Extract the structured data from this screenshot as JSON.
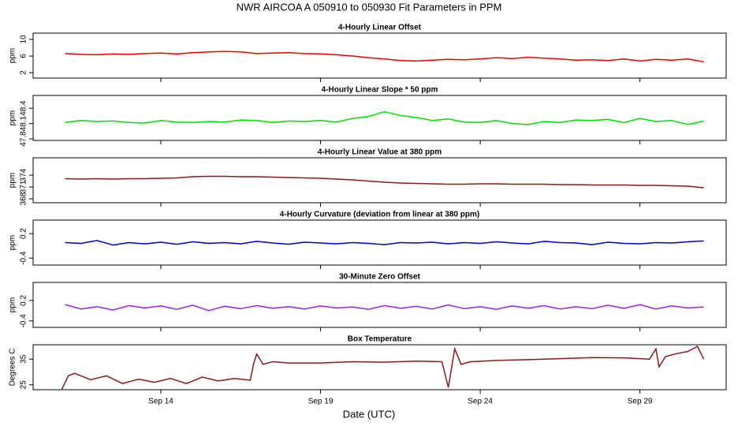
{
  "title": "NWR   AIRCOA A   050910 to 050930   Fit Parameters in PPM",
  "xlabel": "Date (UTC)",
  "xlim": [
    10,
    31.7
  ],
  "xticks": [
    {
      "value": 14,
      "label": "Sep 14"
    },
    {
      "value": 19,
      "label": "Sep 19"
    },
    {
      "value": 24,
      "label": "Sep 24"
    },
    {
      "value": 29,
      "label": "Sep 29"
    }
  ],
  "chart_data": [
    {
      "type": "line",
      "title": "4-Hourly Linear Offset",
      "ylabel": "ppm",
      "color": "#ee0000",
      "ylim": [
        0.7,
        11.5
      ],
      "yticks": [
        2,
        6,
        10
      ],
      "x": [
        11,
        11.5,
        12,
        12.5,
        13,
        13.5,
        14,
        14.5,
        15,
        15.5,
        16,
        16.5,
        17,
        17.5,
        18,
        18.5,
        19,
        19.5,
        20,
        20.5,
        21,
        21.5,
        22,
        22.5,
        23,
        23.5,
        24,
        24.5,
        25,
        25.5,
        26,
        26.5,
        27,
        27.5,
        28,
        28.5,
        29,
        29.5,
        30,
        30.5,
        31
      ],
      "values": [
        6.6,
        6.4,
        6.3,
        6.5,
        6.4,
        6.6,
        6.7,
        6.5,
        6.8,
        7.0,
        7.1,
        7.0,
        6.6,
        6.7,
        6.8,
        6.6,
        6.5,
        6.3,
        6.0,
        5.6,
        5.3,
        4.9,
        4.8,
        5.0,
        5.2,
        5.1,
        5.3,
        5.6,
        5.4,
        5.7,
        5.5,
        5.3,
        5.0,
        5.1,
        4.9,
        5.3,
        4.8,
        5.2,
        5.0,
        5.3,
        4.6
      ]
    },
    {
      "type": "line",
      "title": "4-Hourly Linear Slope * 50 ppm",
      "ylabel": "ppm",
      "color": "#00e000",
      "ylim": [
        47.77,
        48.65
      ],
      "yticks": [
        47.8,
        48.1,
        48.4
      ],
      "x": [
        11,
        11.5,
        12,
        12.5,
        13,
        13.5,
        14,
        14.5,
        15,
        15.5,
        16,
        16.5,
        17,
        17.5,
        18,
        18.5,
        19,
        19.5,
        20,
        20.5,
        21,
        21.5,
        22,
        22.5,
        23,
        23.5,
        24,
        24.5,
        25,
        25.5,
        26,
        26.5,
        27,
        27.5,
        28,
        28.5,
        29,
        29.5,
        30,
        30.5,
        31
      ],
      "values": [
        48.12,
        48.16,
        48.14,
        48.15,
        48.12,
        48.11,
        48.16,
        48.13,
        48.12,
        48.14,
        48.13,
        48.17,
        48.16,
        48.12,
        48.15,
        48.14,
        48.16,
        48.13,
        48.2,
        48.24,
        48.33,
        48.26,
        48.22,
        48.16,
        48.19,
        48.13,
        48.12,
        48.16,
        48.1,
        48.08,
        48.14,
        48.12,
        48.17,
        48.16,
        48.18,
        48.12,
        48.2,
        48.14,
        48.16,
        48.08,
        48.15
      ]
    },
    {
      "type": "line",
      "title": "4-Hourly Linear Value at 380 ppm",
      "ylabel": "ppm",
      "color": "#8b1a1a",
      "ylim": [
        367,
        378.4
      ],
      "yticks": [
        368,
        371,
        374
      ],
      "x": [
        11,
        11.5,
        12,
        12.5,
        13,
        13.5,
        14,
        14.5,
        15,
        15.5,
        16,
        16.5,
        17,
        17.5,
        18,
        18.5,
        19,
        19.5,
        20,
        20.5,
        21,
        21.5,
        22,
        22.5,
        23,
        23.5,
        24,
        24.5,
        25,
        25.5,
        26,
        26.5,
        27,
        27.5,
        28,
        28.5,
        29,
        29.5,
        30,
        30.5,
        31
      ],
      "values": [
        373.1,
        373.0,
        373.1,
        373.0,
        373.1,
        373.1,
        373.2,
        373.3,
        373.6,
        373.7,
        373.7,
        373.6,
        373.6,
        373.5,
        373.4,
        373.3,
        373.2,
        373.0,
        372.8,
        372.5,
        372.2,
        372.0,
        371.9,
        371.8,
        371.7,
        371.7,
        371.8,
        371.8,
        371.7,
        371.7,
        371.7,
        371.6,
        371.6,
        371.5,
        371.5,
        371.5,
        371.4,
        371.4,
        371.3,
        371.2,
        370.8
      ]
    },
    {
      "type": "line",
      "title": "4-Hourly Curvature (deviation from linear at 380 ppm)",
      "ylabel": "ppm",
      "color": "#0000cc",
      "ylim": [
        -0.57,
        0.53
      ],
      "yticks": [
        -0.4,
        0.2
      ],
      "x": [
        11,
        11.5,
        12,
        12.5,
        13,
        13.5,
        14,
        14.5,
        15,
        15.5,
        16,
        16.5,
        17,
        17.5,
        18,
        18.5,
        19,
        19.5,
        20,
        20.5,
        21,
        21.5,
        22,
        22.5,
        23,
        23.5,
        24,
        24.5,
        25,
        25.5,
        26,
        26.5,
        27,
        27.5,
        28,
        28.5,
        29,
        29.5,
        30,
        30.5,
        31
      ],
      "values": [
        -0.02,
        -0.04,
        0.03,
        -0.08,
        -0.02,
        -0.05,
        -0.01,
        -0.06,
        0.0,
        -0.04,
        -0.02,
        -0.05,
        0.01,
        -0.03,
        -0.06,
        -0.01,
        -0.03,
        -0.05,
        -0.02,
        -0.04,
        -0.07,
        -0.02,
        -0.03,
        -0.01,
        -0.05,
        -0.02,
        -0.04,
        0.0,
        -0.03,
        -0.05,
        0.01,
        -0.02,
        -0.03,
        -0.07,
        -0.01,
        -0.04,
        -0.05,
        -0.02,
        -0.03,
        0.0,
        0.02
      ]
    },
    {
      "type": "line",
      "title": "30-Minute Zero Offset",
      "ylabel": "ppm",
      "color": "#a020f0",
      "ylim": [
        -0.59,
        0.73
      ],
      "yticks": [
        -0.4,
        0.2
      ],
      "x": [
        11,
        11.5,
        12,
        12.5,
        13,
        13.5,
        14,
        14.5,
        15,
        15.5,
        16,
        16.5,
        17,
        17.5,
        18,
        18.5,
        19,
        19.5,
        20,
        20.5,
        21,
        21.5,
        22,
        22.5,
        23,
        23.5,
        24,
        24.5,
        25,
        25.5,
        26,
        26.5,
        27,
        27.5,
        28,
        28.5,
        29,
        29.5,
        30,
        30.5,
        31
      ],
      "values": [
        0.08,
        -0.05,
        0.02,
        -0.08,
        0.05,
        -0.02,
        0.04,
        -0.06,
        0.06,
        -0.1,
        0.03,
        -0.04,
        0.05,
        -0.03,
        0.02,
        -0.05,
        0.04,
        -0.02,
        0.01,
        -0.06,
        0.05,
        -0.03,
        0.03,
        -0.05,
        0.07,
        -0.04,
        0.02,
        -0.06,
        0.04,
        -0.03,
        0.05,
        -0.05,
        0.02,
        -0.04,
        0.06,
        -0.03,
        0.08,
        -0.05,
        0.04,
        -0.02,
        0.01
      ]
    },
    {
      "type": "line",
      "title": "Box Temperature",
      "ylabel": "Degrees C",
      "color": "#8b1a1a",
      "ylim": [
        23.1,
        40.6
      ],
      "yticks": [
        25,
        35
      ],
      "x": [
        10.9,
        11.1,
        11.3,
        11.8,
        12.3,
        12.8,
        13.3,
        13.8,
        14.3,
        14.8,
        15.3,
        15.8,
        16.3,
        16.8,
        16.9,
        17.0,
        17.2,
        17.5,
        18,
        19,
        20,
        21,
        22,
        22.8,
        23.0,
        23.2,
        23.4,
        23.7,
        24.5,
        25.5,
        26.5,
        27.5,
        28.5,
        29.3,
        29.5,
        29.6,
        29.8,
        30.1,
        30.5,
        30.8,
        31.0
      ],
      "values": [
        23.3,
        28.5,
        29.5,
        27,
        28.5,
        25.5,
        27.2,
        26,
        27.5,
        25.5,
        28,
        26.5,
        27.5,
        26.8,
        33,
        37,
        33,
        34,
        33.5,
        33.5,
        34,
        33.8,
        34.2,
        34,
        24,
        39,
        33,
        34,
        34.5,
        34.8,
        35.2,
        35.6,
        35.5,
        35,
        39,
        32,
        36,
        37,
        38,
        40,
        35
      ]
    }
  ]
}
